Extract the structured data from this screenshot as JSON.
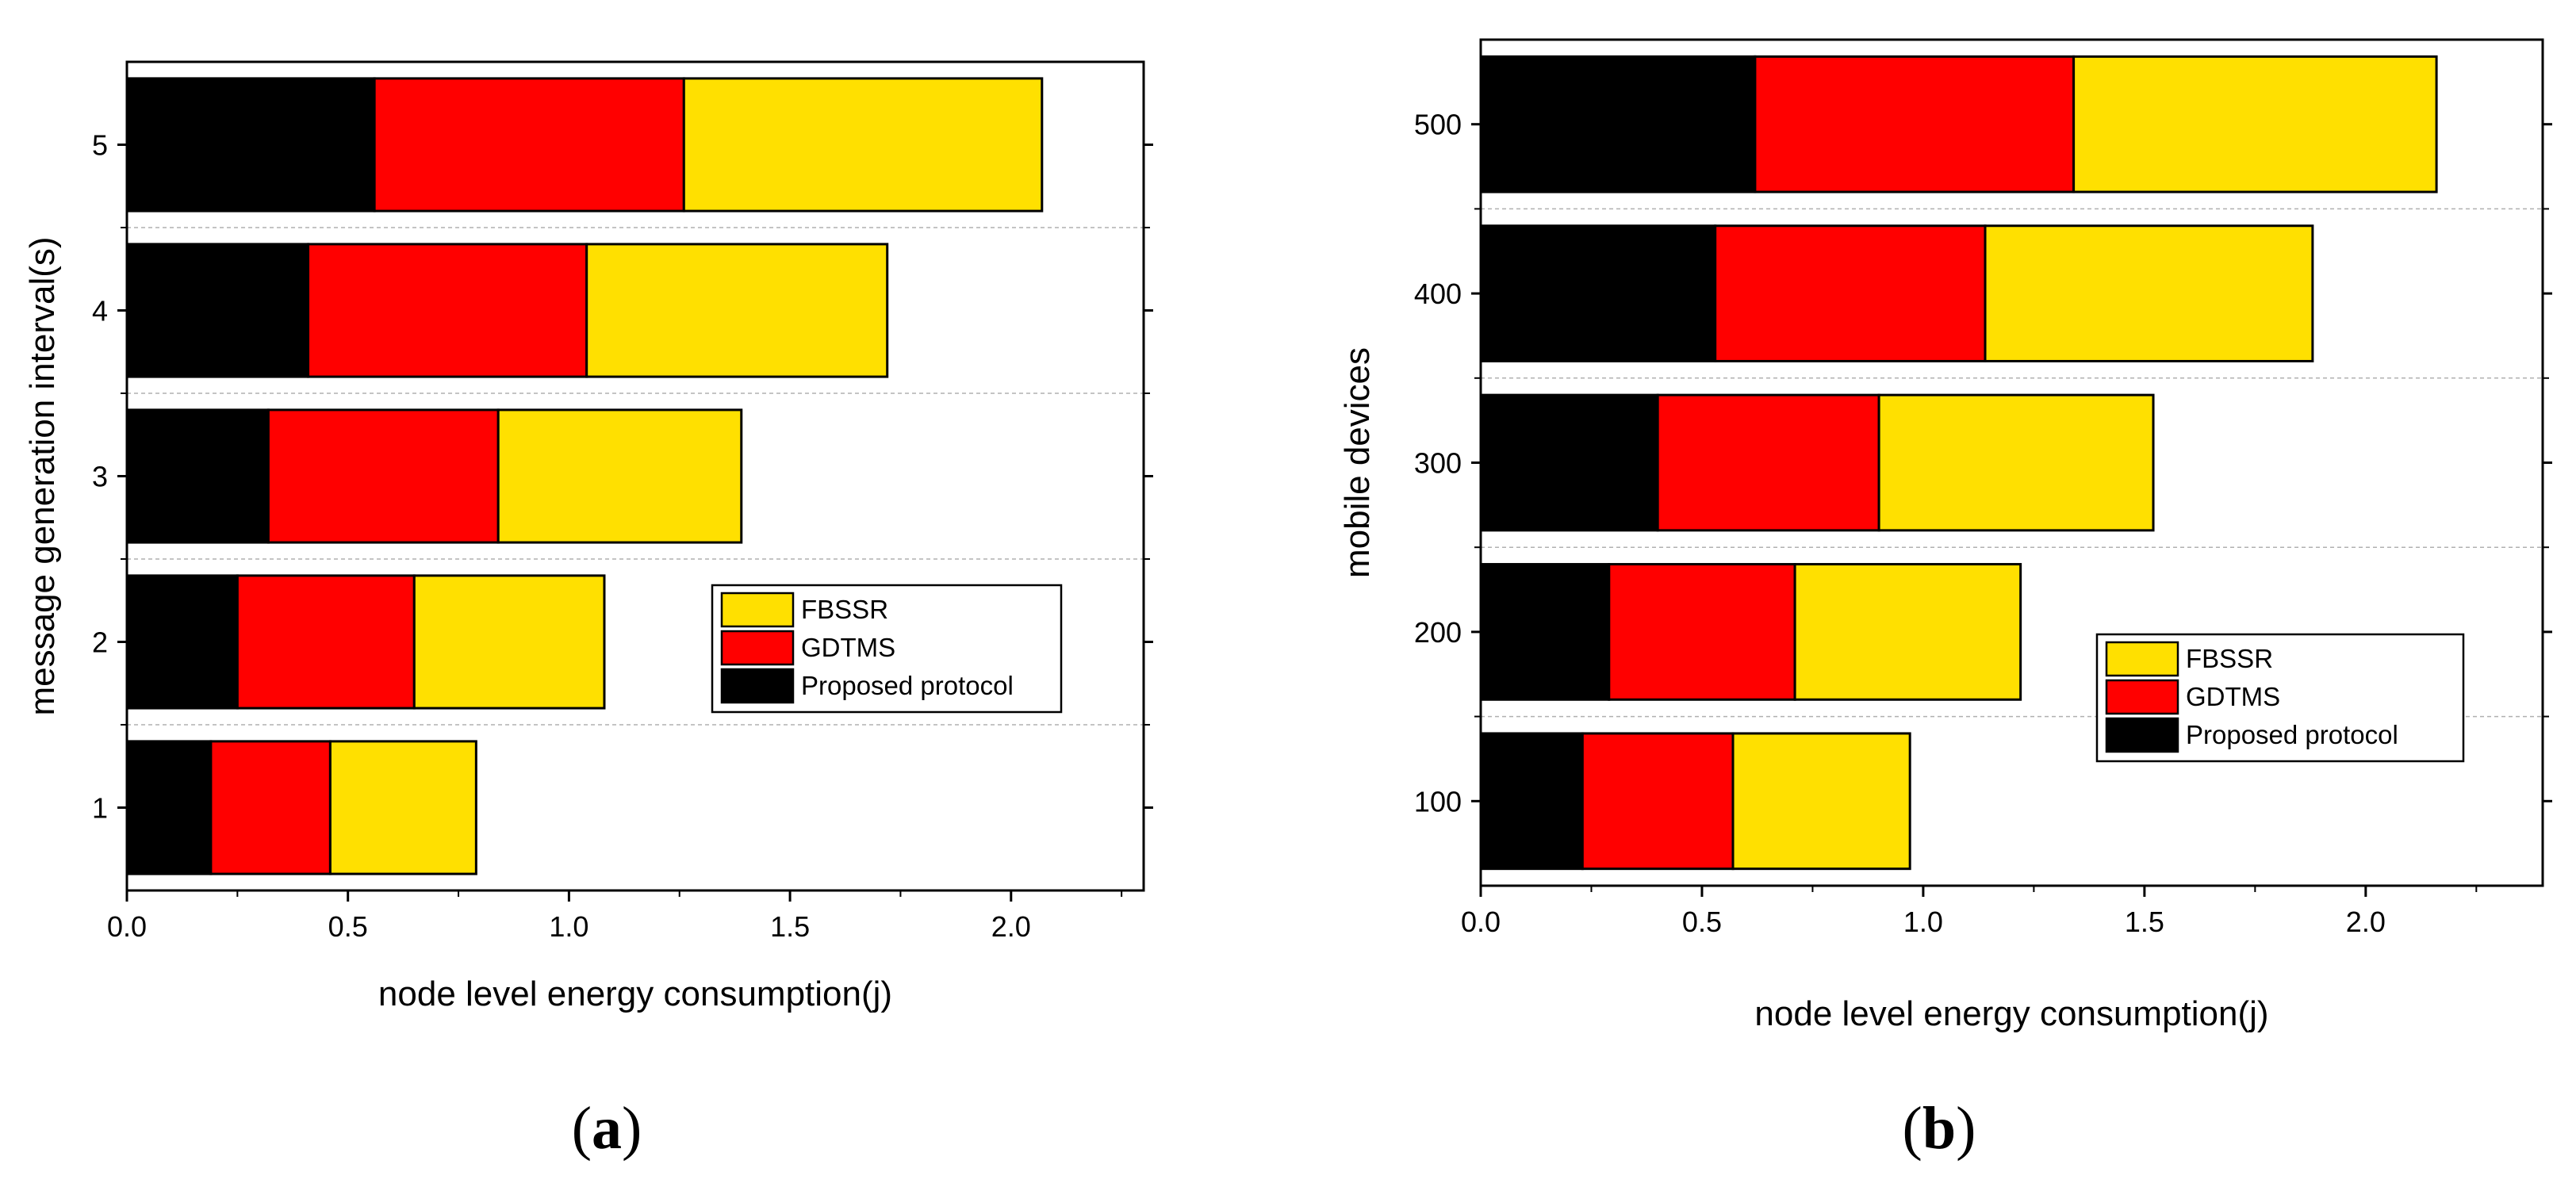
{
  "colors": {
    "FBSSR": "#FFE000",
    "GDTMS": "#FF0000",
    "Proposed protocol": "#000000",
    "grid": "#b0b0b0"
  },
  "chart_data": [
    {
      "type": "bar",
      "orientation": "horizontal",
      "stacked": true,
      "title": "",
      "caption": {
        "open": "(",
        "letter": "a",
        "close": ")"
      },
      "xlabel": "node level energy consumption(j)",
      "ylabel": "message generation interval(s)",
      "xlim": [
        0,
        2.3
      ],
      "xticks": [
        0.0,
        0.5,
        1.0,
        1.5,
        2.0
      ],
      "xtick_labels": [
        "0.0",
        "0.5",
        "1.0",
        "1.5",
        "2.0"
      ],
      "categories": [
        "1",
        "2",
        "3",
        "4",
        "5"
      ],
      "legend_position": "center-right",
      "series": [
        {
          "name": "Proposed protocol",
          "values": [
            0.19,
            0.25,
            0.32,
            0.41,
            0.56
          ]
        },
        {
          "name": "GDTMS",
          "values": [
            0.27,
            0.4,
            0.52,
            0.63,
            0.7
          ]
        },
        {
          "name": "FBSSR",
          "values": [
            0.33,
            0.43,
            0.55,
            0.68,
            0.81
          ]
        }
      ],
      "legend": [
        "FBSSR",
        "GDTMS",
        "Proposed protocol"
      ]
    },
    {
      "type": "bar",
      "orientation": "horizontal",
      "stacked": true,
      "title": "",
      "caption": {
        "open": "(",
        "letter": "b",
        "close": ")"
      },
      "xlabel": "node level energy consumption(j)",
      "ylabel": "mobile devices",
      "xlim": [
        0,
        2.4
      ],
      "xticks": [
        0.0,
        0.5,
        1.0,
        1.5,
        2.0
      ],
      "xtick_labels": [
        "0.0",
        "0.5",
        "1.0",
        "1.5",
        "2.0"
      ],
      "categories": [
        "100",
        "200",
        "300",
        "400",
        "500"
      ],
      "legend_position": "bottom-right",
      "series": [
        {
          "name": "Proposed protocol",
          "values": [
            0.23,
            0.29,
            0.4,
            0.53,
            0.62
          ]
        },
        {
          "name": "GDTMS",
          "values": [
            0.34,
            0.42,
            0.5,
            0.61,
            0.72
          ]
        },
        {
          "name": "FBSSR",
          "values": [
            0.4,
            0.51,
            0.62,
            0.74,
            0.82
          ]
        }
      ],
      "legend": [
        "FBSSR",
        "GDTMS",
        "Proposed protocol"
      ]
    }
  ]
}
